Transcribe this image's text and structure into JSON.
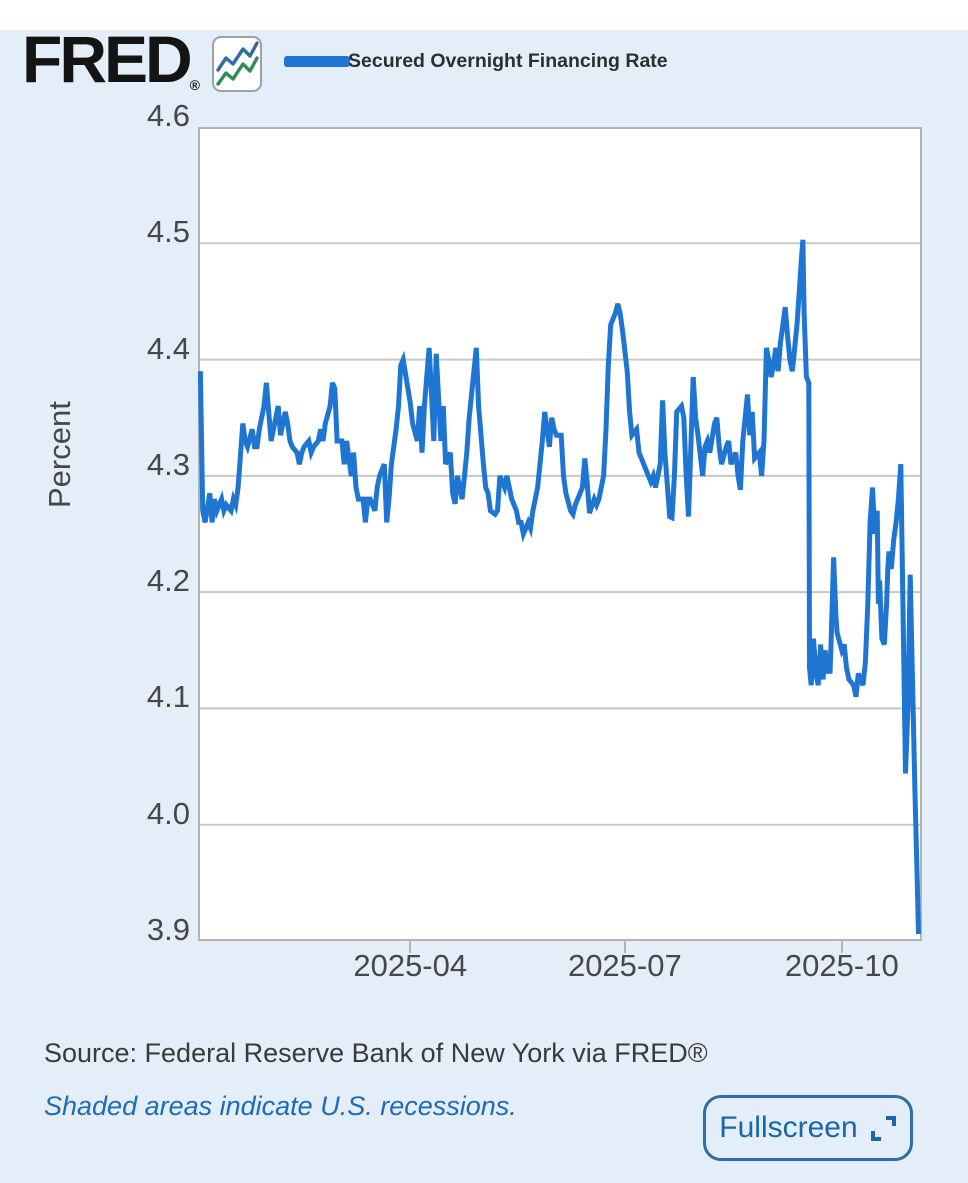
{
  "header": {
    "logo_text": "FRED",
    "logo_registered": "®",
    "legend_label": "Secured Overnight Financing Rate"
  },
  "footer": {
    "source_text": "Source: Federal Reserve Bank of New York via FRED®",
    "recession_note": "Shaded areas indicate U.S. recessions.",
    "fullscreen_label": "Fullscreen"
  },
  "colors": {
    "page_background": "#e4eef8",
    "line": "#1f75d2",
    "grid": "#c7c7c7",
    "plot_border": "#b3b3b3",
    "tick_label": "#474747",
    "note_blue": "#1d6cb5",
    "fullscreen_blue": "#1766ae",
    "icon_blue": "#2e6da4",
    "icon_green": "#2e8b57"
  },
  "chart_data": {
    "type": "line",
    "title": "Secured Overnight Financing Rate",
    "ylabel": "Percent",
    "ylim": [
      3.9,
      4.6
    ],
    "yticks": [
      3.9,
      4.0,
      4.1,
      4.2,
      4.3,
      4.4,
      4.5,
      4.6
    ],
    "grid": "horizontal-only",
    "legend_position": "top",
    "x_unit": "days since 2025-01-01",
    "xlim_days": [
      0,
      307
    ],
    "xticks": [
      {
        "label": "2025-04",
        "day": 90
      },
      {
        "label": "2025-07",
        "day": 181
      },
      {
        "label": "2025-10",
        "day": 273
      }
    ],
    "series": [
      {
        "name": "Secured Overnight Financing Rate",
        "points": [
          [
            1,
            4.39
          ],
          [
            2,
            4.27
          ],
          [
            3,
            4.26
          ],
          [
            5,
            4.285
          ],
          [
            6,
            4.26
          ],
          [
            7,
            4.28
          ],
          [
            8,
            4.27
          ],
          [
            10,
            4.28
          ],
          [
            11,
            4.27
          ],
          [
            12,
            4.275
          ],
          [
            14,
            4.27
          ],
          [
            15,
            4.28
          ],
          [
            16,
            4.275
          ],
          [
            17,
            4.29
          ],
          [
            19,
            4.345
          ],
          [
            20,
            4.33
          ],
          [
            21,
            4.325
          ],
          [
            23,
            4.34
          ],
          [
            24,
            4.325
          ],
          [
            25,
            4.325
          ],
          [
            26,
            4.34
          ],
          [
            28,
            4.36
          ],
          [
            29,
            4.38
          ],
          [
            30,
            4.355
          ],
          [
            31,
            4.33
          ],
          [
            33,
            4.35
          ],
          [
            34,
            4.36
          ],
          [
            35,
            4.335
          ],
          [
            37,
            4.355
          ],
          [
            38,
            4.345
          ],
          [
            39,
            4.33
          ],
          [
            40,
            4.325
          ],
          [
            42,
            4.32
          ],
          [
            43,
            4.31
          ],
          [
            44,
            4.32
          ],
          [
            45,
            4.325
          ],
          [
            47,
            4.33
          ],
          [
            48,
            4.32
          ],
          [
            49,
            4.325
          ],
          [
            51,
            4.33
          ],
          [
            52,
            4.34
          ],
          [
            53,
            4.33
          ],
          [
            54,
            4.345
          ],
          [
            56,
            4.36
          ],
          [
            57,
            4.38
          ],
          [
            58,
            4.375
          ],
          [
            59,
            4.33
          ],
          [
            61,
            4.33
          ],
          [
            62,
            4.31
          ],
          [
            63,
            4.33
          ],
          [
            65,
            4.3
          ],
          [
            66,
            4.32
          ],
          [
            67,
            4.29
          ],
          [
            68,
            4.28
          ],
          [
            70,
            4.28
          ],
          [
            71,
            4.26
          ],
          [
            72,
            4.28
          ],
          [
            73,
            4.28
          ],
          [
            75,
            4.27
          ],
          [
            76,
            4.29
          ],
          [
            77,
            4.3
          ],
          [
            79,
            4.31
          ],
          [
            80,
            4.26
          ],
          [
            81,
            4.28
          ],
          [
            82,
            4.31
          ],
          [
            84,
            4.34
          ],
          [
            85,
            4.36
          ],
          [
            86,
            4.395
          ],
          [
            87,
            4.4
          ],
          [
            89,
            4.375
          ],
          [
            90,
            4.363
          ],
          [
            91,
            4.345
          ],
          [
            93,
            4.33
          ],
          [
            94,
            4.36
          ],
          [
            95,
            4.32
          ],
          [
            96,
            4.36
          ],
          [
            98,
            4.41
          ],
          [
            99,
            4.37
          ],
          [
            100,
            4.33
          ],
          [
            101,
            4.405
          ],
          [
            103,
            4.33
          ],
          [
            104,
            4.36
          ],
          [
            105,
            4.31
          ],
          [
            107,
            4.32
          ],
          [
            108,
            4.285
          ],
          [
            109,
            4.276
          ],
          [
            110,
            4.3
          ],
          [
            112,
            4.28
          ],
          [
            113,
            4.3
          ],
          [
            114,
            4.32
          ],
          [
            115,
            4.35
          ],
          [
            117,
            4.39
          ],
          [
            118,
            4.41
          ],
          [
            119,
            4.36
          ],
          [
            121,
            4.31
          ],
          [
            122,
            4.29
          ],
          [
            123,
            4.285
          ],
          [
            124,
            4.27
          ],
          [
            126,
            4.267
          ],
          [
            127,
            4.27
          ],
          [
            128,
            4.3
          ],
          [
            130,
            4.29
          ],
          [
            131,
            4.3
          ],
          [
            132,
            4.29
          ],
          [
            133,
            4.28
          ],
          [
            135,
            4.27
          ],
          [
            136,
            4.26
          ],
          [
            137,
            4.26
          ],
          [
            138,
            4.25
          ],
          [
            140,
            4.26
          ],
          [
            141,
            4.255
          ],
          [
            142,
            4.27
          ],
          [
            144,
            4.29
          ],
          [
            145,
            4.31
          ],
          [
            146,
            4.33
          ],
          [
            147,
            4.355
          ],
          [
            149,
            4.325
          ],
          [
            150,
            4.35
          ],
          [
            151,
            4.34
          ],
          [
            152,
            4.335
          ],
          [
            154,
            4.335
          ],
          [
            155,
            4.3
          ],
          [
            156,
            4.285
          ],
          [
            158,
            4.27
          ],
          [
            159,
            4.267
          ],
          [
            160,
            4.275
          ],
          [
            161,
            4.28
          ],
          [
            163,
            4.29
          ],
          [
            164,
            4.315
          ],
          [
            165,
            4.295
          ],
          [
            166,
            4.268
          ],
          [
            168,
            4.28
          ],
          [
            169,
            4.275
          ],
          [
            170,
            4.28
          ],
          [
            172,
            4.3
          ],
          [
            173,
            4.34
          ],
          [
            174,
            4.395
          ],
          [
            175,
            4.43
          ],
          [
            177,
            4.44
          ],
          [
            178,
            4.448
          ],
          [
            179,
            4.44
          ],
          [
            180,
            4.425
          ],
          [
            182,
            4.39
          ],
          [
            183,
            4.355
          ],
          [
            184,
            4.335
          ],
          [
            186,
            4.34
          ],
          [
            187,
            4.32
          ],
          [
            188,
            4.315
          ],
          [
            189,
            4.31
          ],
          [
            191,
            4.3
          ],
          [
            192,
            4.295
          ],
          [
            193,
            4.3
          ],
          [
            194,
            4.29
          ],
          [
            196,
            4.31
          ],
          [
            197,
            4.365
          ],
          [
            198,
            4.32
          ],
          [
            200,
            4.265
          ],
          [
            201,
            4.264
          ],
          [
            202,
            4.3
          ],
          [
            203,
            4.355
          ],
          [
            205,
            4.36
          ],
          [
            206,
            4.35
          ],
          [
            207,
            4.3
          ],
          [
            208,
            4.265
          ],
          [
            210,
            4.385
          ],
          [
            211,
            4.35
          ],
          [
            212,
            4.335
          ],
          [
            214,
            4.3
          ],
          [
            215,
            4.325
          ],
          [
            216,
            4.33
          ],
          [
            217,
            4.32
          ],
          [
            219,
            4.345
          ],
          [
            220,
            4.35
          ],
          [
            221,
            4.325
          ],
          [
            222,
            4.31
          ],
          [
            224,
            4.325
          ],
          [
            225,
            4.33
          ],
          [
            226,
            4.31
          ],
          [
            228,
            4.32
          ],
          [
            229,
            4.3
          ],
          [
            230,
            4.288
          ],
          [
            231,
            4.33
          ],
          [
            233,
            4.37
          ],
          [
            234,
            4.335
          ],
          [
            235,
            4.355
          ],
          [
            236,
            4.315
          ],
          [
            238,
            4.32
          ],
          [
            239,
            4.3
          ],
          [
            240,
            4.33
          ],
          [
            241,
            4.41
          ],
          [
            242,
            4.4
          ],
          [
            243,
            4.385
          ],
          [
            244,
            4.395
          ],
          [
            245,
            4.41
          ],
          [
            246,
            4.39
          ],
          [
            247,
            4.415
          ],
          [
            248,
            4.43
          ],
          [
            249,
            4.445
          ],
          [
            250,
            4.42
          ],
          [
            251,
            4.4
          ],
          [
            252,
            4.39
          ],
          [
            253,
            4.41
          ],
          [
            254,
            4.43
          ],
          [
            255,
            4.46
          ],
          [
            256,
            4.49
          ],
          [
            256.5,
            4.503
          ],
          [
            257,
            4.44
          ],
          [
            258,
            4.385
          ],
          [
            259,
            4.38
          ],
          [
            259.3,
            4.135
          ],
          [
            260,
            4.12
          ],
          [
            261,
            4.16
          ],
          [
            262,
            4.13
          ],
          [
            263,
            4.12
          ],
          [
            264,
            4.155
          ],
          [
            265,
            4.125
          ],
          [
            266,
            4.15
          ],
          [
            266.5,
            4.13
          ],
          [
            267,
            4.14
          ],
          [
            268,
            4.13
          ],
          [
            268.5,
            4.16
          ],
          [
            269.5,
            4.23
          ],
          [
            270.5,
            4.18
          ],
          [
            271,
            4.165
          ],
          [
            273,
            4.15
          ],
          [
            274,
            4.155
          ],
          [
            275,
            4.135
          ],
          [
            276,
            4.125
          ],
          [
            278,
            4.12
          ],
          [
            279,
            4.11
          ],
          [
            280,
            4.13
          ],
          [
            282,
            4.12
          ],
          [
            283,
            4.14
          ],
          [
            284,
            4.19
          ],
          [
            285,
            4.26
          ],
          [
            286,
            4.29
          ],
          [
            287,
            4.25
          ],
          [
            288,
            4.27
          ],
          [
            288.5,
            4.19
          ],
          [
            289,
            4.21
          ],
          [
            290,
            4.16
          ],
          [
            291,
            4.155
          ],
          [
            292,
            4.19
          ],
          [
            292.5,
            4.22
          ],
          [
            293,
            4.235
          ],
          [
            294,
            4.22
          ],
          [
            295,
            4.245
          ],
          [
            296,
            4.26
          ],
          [
            297,
            4.28
          ],
          [
            298,
            4.31
          ],
          [
            299,
            4.18
          ],
          [
            300,
            4.044
          ],
          [
            301,
            4.1
          ],
          [
            302,
            4.215
          ],
          [
            303,
            4.12
          ],
          [
            304,
            4.03
          ],
          [
            305,
            3.95
          ],
          [
            305.5,
            3.906
          ]
        ]
      }
    ]
  }
}
